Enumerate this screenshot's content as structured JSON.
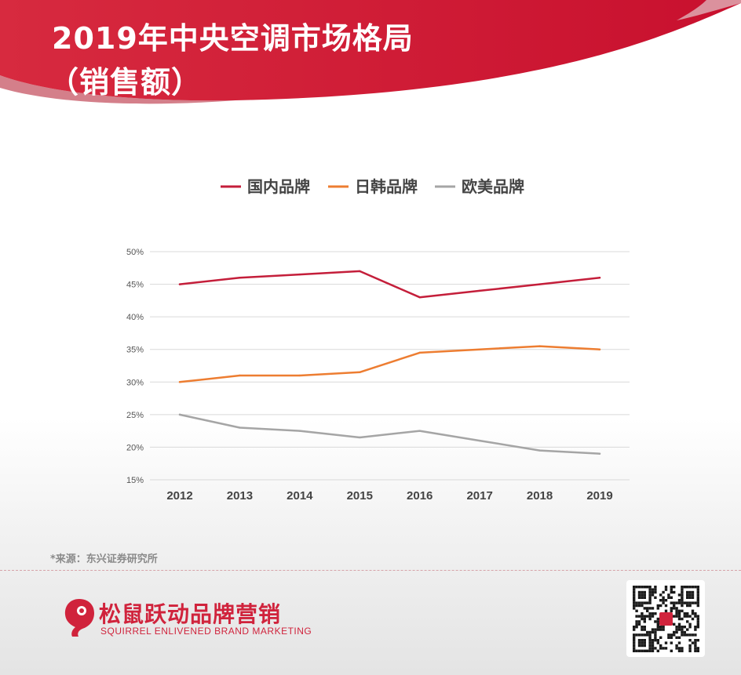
{
  "header": {
    "title_line1": "2019年中央空调市场格局",
    "title_line2": "（销售额）"
  },
  "colors": {
    "brand_red": "#d0233c",
    "series_domestic": "#c41e3a",
    "series_jpkr": "#ed7d31",
    "series_euus": "#a5a5a5"
  },
  "chart_data": {
    "type": "line",
    "x": [
      "2012",
      "2013",
      "2014",
      "2015",
      "2016",
      "2017",
      "2018",
      "2019"
    ],
    "series": [
      {
        "name": "国内品牌",
        "color": "#c41e3a",
        "values": [
          45,
          46,
          46.5,
          47,
          43,
          44,
          45,
          46
        ]
      },
      {
        "name": "日韩品牌",
        "color": "#ed7d31",
        "values": [
          30,
          31,
          31,
          31.5,
          34.5,
          35,
          35.5,
          35
        ]
      },
      {
        "name": "欧美品牌",
        "color": "#a5a5a5",
        "values": [
          25,
          23,
          22.5,
          21.5,
          22.5,
          21,
          19.5,
          19
        ]
      }
    ],
    "yticks": [
      "15%",
      "20%",
      "25%",
      "30%",
      "35%",
      "40%",
      "45%",
      "50%"
    ],
    "ylim": [
      15,
      50
    ],
    "grid": true,
    "legend": "top-center"
  },
  "footer": {
    "source": "*来源：东兴证券研究所",
    "brand_name": "松鼠跃动品牌营销",
    "brand_en": "SQUIRREL ENLIVENED BRAND MARKETING",
    "brand_icon": "squirrel-logo-icon",
    "qr_icon": "qr-code-icon"
  }
}
